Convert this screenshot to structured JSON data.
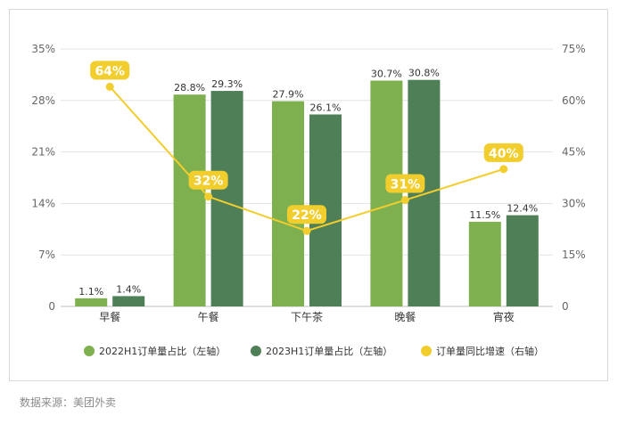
{
  "chart_data": {
    "type": "bar+line",
    "categories": [
      "早餐",
      "午餐",
      "下午茶",
      "晚餐",
      "宵夜"
    ],
    "series": [
      {
        "name": "2022H1订单量占比（左轴）",
        "type": "bar",
        "axis": "left",
        "color": "#7fb04f",
        "values": [
          1.1,
          28.8,
          27.9,
          30.7,
          11.5
        ],
        "labels": [
          "1.1%",
          "28.8%",
          "27.9%",
          "30.7%",
          "11.5%"
        ]
      },
      {
        "name": "2023H1订单量占比（左轴）",
        "type": "bar",
        "axis": "left",
        "color": "#4e7f56",
        "values": [
          1.4,
          29.3,
          26.1,
          30.8,
          12.4
        ],
        "labels": [
          "1.4%",
          "29.3%",
          "26.1%",
          "30.8%",
          "12.4%"
        ]
      },
      {
        "name": "订单量同比增速（右轴）",
        "type": "line",
        "axis": "right",
        "color": "#f2cd2e",
        "values": [
          64,
          32,
          22,
          31,
          40
        ],
        "labels": [
          "64%",
          "32%",
          "22%",
          "31%",
          "40%"
        ]
      }
    ],
    "y_left": {
      "range": [
        0,
        35
      ],
      "ticks": [
        "0",
        "7%",
        "14%",
        "21%",
        "28%",
        "35%"
      ]
    },
    "y_right": {
      "range": [
        0,
        75
      ],
      "ticks": [
        "0",
        "15%",
        "30%",
        "45%",
        "60%",
        "75%"
      ]
    },
    "grid": true,
    "legend_position": "bottom"
  },
  "source": "数据来源：美团外卖"
}
